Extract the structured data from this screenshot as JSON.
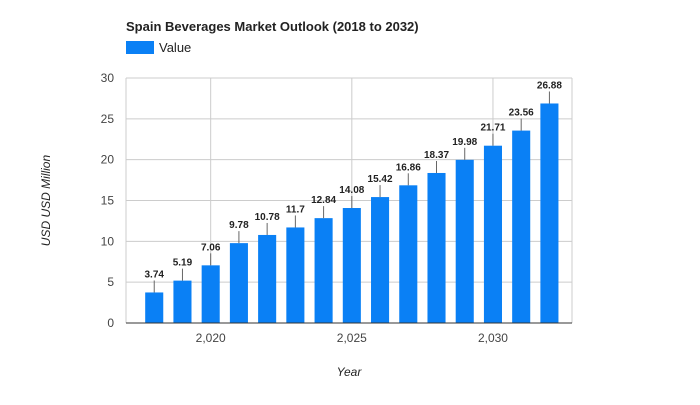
{
  "chart_data": {
    "type": "bar",
    "title": "Spain Beverages Market Outlook (2018 to 2032)",
    "xlabel": "Year",
    "ylabel": "USD USD Million",
    "legend": {
      "position": "top-left",
      "entries": [
        "Value"
      ]
    },
    "colors": {
      "bar": "#0a80f5",
      "grid": "#cccccc",
      "axis": "#333333"
    },
    "grid": true,
    "x": [
      2018,
      2019,
      2020,
      2021,
      2022,
      2023,
      2024,
      2025,
      2026,
      2027,
      2028,
      2029,
      2030,
      2031,
      2032
    ],
    "xlim": [
      2017,
      2032.8
    ],
    "xticks": [
      2020,
      2025,
      2030
    ],
    "xtick_labels": [
      "2,020",
      "2,025",
      "2,030"
    ],
    "ylim": [
      0,
      30
    ],
    "yticks": [
      0,
      5,
      10,
      15,
      20,
      25,
      30
    ],
    "series": [
      {
        "name": "Value",
        "values": [
          3.74,
          5.19,
          7.06,
          9.78,
          10.78,
          11.7,
          12.84,
          14.08,
          15.42,
          16.86,
          18.37,
          19.98,
          21.71,
          23.56,
          26.88
        ]
      }
    ],
    "data_labels": [
      "3.74",
      "5.19",
      "7.06",
      "9.78",
      "10.78",
      "11.7",
      "12.84",
      "14.08",
      "15.42",
      "16.86",
      "18.37",
      "19.98",
      "21.71",
      "23.56",
      "26.88"
    ]
  }
}
